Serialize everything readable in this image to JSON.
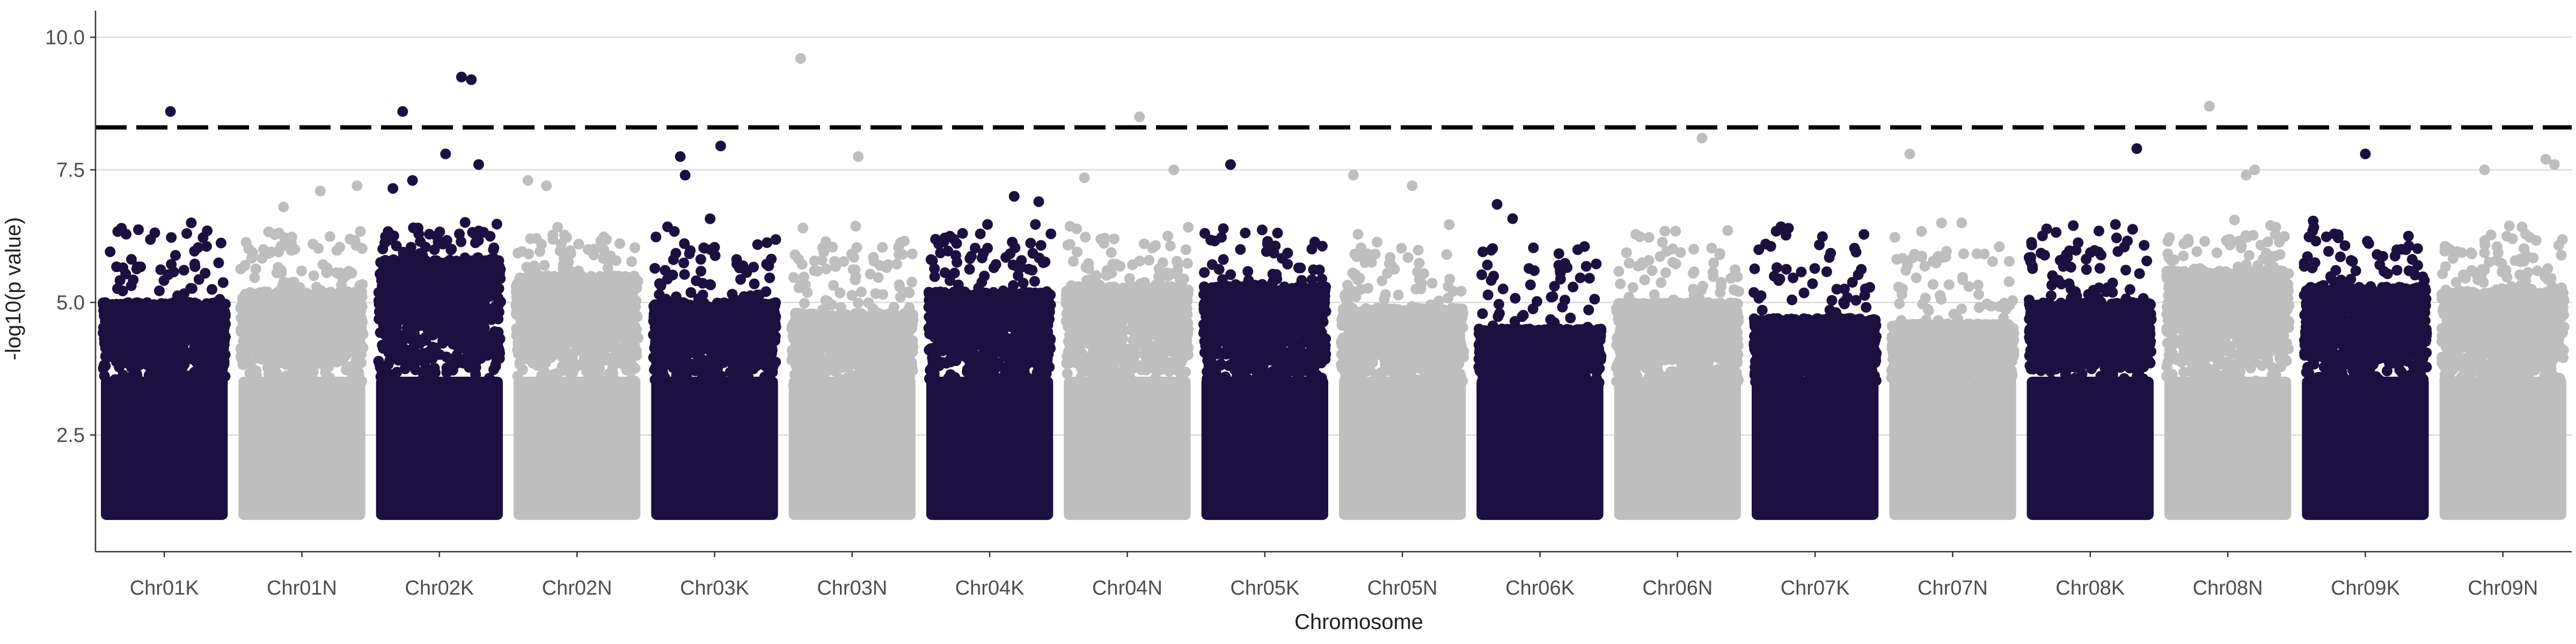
{
  "chart_data": {
    "type": "scatter",
    "title": "",
    "xlabel": "Chromosome",
    "ylabel": "-log10(p value)",
    "categories": [
      "Chr01K",
      "Chr01N",
      "Chr02K",
      "Chr02N",
      "Chr03K",
      "Chr03N",
      "Chr04K",
      "Chr04N",
      "Chr05K",
      "Chr05N",
      "Chr06K",
      "Chr06N",
      "Chr07K",
      "Chr07N",
      "Chr08K",
      "Chr08N",
      "Chr09K",
      "Chr09N"
    ],
    "ylim": [
      0.3,
      10.5
    ],
    "yticks": [
      {
        "value": 2.5,
        "label": "2.5"
      },
      {
        "value": 5.0,
        "label": "5.0"
      },
      {
        "value": 7.5,
        "label": "7.5"
      },
      {
        "value": 10.0,
        "label": "10.0"
      }
    ],
    "threshold": 8.3,
    "grid": true,
    "legend": "none",
    "colors": {
      "dark": "#1c1040",
      "light": "#bebebe",
      "grid": "#dcdcdc",
      "threshold": "#000000"
    },
    "series": [
      {
        "category": "Chr01K",
        "color": "dark",
        "max_peak": 8.6,
        "typical_top": 5.0
      },
      {
        "category": "Chr01N",
        "color": "light",
        "max_peak": 7.2,
        "typical_top": 5.2
      },
      {
        "category": "Chr02K",
        "color": "dark",
        "max_peak": 9.25,
        "typical_top": 5.8
      },
      {
        "category": "Chr02N",
        "color": "light",
        "max_peak": 7.3,
        "typical_top": 5.5
      },
      {
        "category": "Chr03K",
        "color": "dark",
        "max_peak": 7.9,
        "typical_top": 5.0
      },
      {
        "category": "Chr03N",
        "color": "light",
        "max_peak": 9.6,
        "typical_top": 4.8
      },
      {
        "category": "Chr04K",
        "color": "dark",
        "max_peak": 7.0,
        "typical_top": 5.2
      },
      {
        "category": "Chr04N",
        "color": "light",
        "max_peak": 8.5,
        "typical_top": 5.3
      },
      {
        "category": "Chr05K",
        "color": "dark",
        "max_peak": 7.6,
        "typical_top": 5.3
      },
      {
        "category": "Chr05N",
        "color": "light",
        "max_peak": 7.4,
        "typical_top": 4.9
      },
      {
        "category": "Chr06K",
        "color": "dark",
        "max_peak": 6.8,
        "typical_top": 4.5
      },
      {
        "category": "Chr06N",
        "color": "light",
        "max_peak": 8.1,
        "typical_top": 5.0
      },
      {
        "category": "Chr07K",
        "color": "dark",
        "max_peak": 6.3,
        "typical_top": 4.7
      },
      {
        "category": "Chr07N",
        "color": "light",
        "max_peak": 7.8,
        "typical_top": 4.6
      },
      {
        "category": "Chr08K",
        "color": "dark",
        "max_peak": 7.9,
        "typical_top": 5.0
      },
      {
        "category": "Chr08N",
        "color": "light",
        "max_peak": 8.7,
        "typical_top": 5.6
      },
      {
        "category": "Chr09K",
        "color": "dark",
        "max_peak": 7.8,
        "typical_top": 5.3
      },
      {
        "category": "Chr09N",
        "color": "light",
        "max_peak": 7.7,
        "typical_top": 5.2
      }
    ],
    "outliers": [
      {
        "category": "Chr01K",
        "pos": 0.55,
        "y": 8.6
      },
      {
        "category": "Chr01K",
        "pos": 0.15,
        "y": 6.4
      },
      {
        "category": "Chr01K",
        "pos": 0.72,
        "y": 6.5
      },
      {
        "category": "Chr01K",
        "pos": 0.85,
        "y": 6.35
      },
      {
        "category": "Chr01N",
        "pos": 0.65,
        "y": 7.1
      },
      {
        "category": "Chr01N",
        "pos": 0.95,
        "y": 7.2
      },
      {
        "category": "Chr01N",
        "pos": 0.35,
        "y": 6.8
      },
      {
        "category": "Chr02K",
        "pos": 0.2,
        "y": 8.6
      },
      {
        "category": "Chr02K",
        "pos": 0.68,
        "y": 9.25
      },
      {
        "category": "Chr02K",
        "pos": 0.76,
        "y": 9.2
      },
      {
        "category": "Chr02K",
        "pos": 0.55,
        "y": 7.8
      },
      {
        "category": "Chr02K",
        "pos": 0.82,
        "y": 7.6
      },
      {
        "category": "Chr02K",
        "pos": 0.12,
        "y": 7.15
      },
      {
        "category": "Chr02K",
        "pos": 0.28,
        "y": 7.3
      },
      {
        "category": "Chr02N",
        "pos": 0.1,
        "y": 7.3
      },
      {
        "category": "Chr02N",
        "pos": 0.25,
        "y": 7.2
      },
      {
        "category": "Chr03K",
        "pos": 0.22,
        "y": 7.75
      },
      {
        "category": "Chr03K",
        "pos": 0.55,
        "y": 7.95
      },
      {
        "category": "Chr03K",
        "pos": 0.26,
        "y": 7.4
      },
      {
        "category": "Chr03N",
        "pos": 0.08,
        "y": 9.6
      },
      {
        "category": "Chr03N",
        "pos": 0.55,
        "y": 7.75
      },
      {
        "category": "Chr04K",
        "pos": 0.7,
        "y": 7.0
      },
      {
        "category": "Chr04K",
        "pos": 0.9,
        "y": 6.9
      },
      {
        "category": "Chr04N",
        "pos": 0.6,
        "y": 8.5
      },
      {
        "category": "Chr04N",
        "pos": 0.15,
        "y": 7.35
      },
      {
        "category": "Chr04N",
        "pos": 0.88,
        "y": 7.5
      },
      {
        "category": "Chr05K",
        "pos": 0.22,
        "y": 7.6
      },
      {
        "category": "Chr05N",
        "pos": 0.1,
        "y": 7.4
      },
      {
        "category": "Chr05N",
        "pos": 0.58,
        "y": 7.2
      },
      {
        "category": "Chr06K",
        "pos": 0.15,
        "y": 6.85
      },
      {
        "category": "Chr06N",
        "pos": 0.7,
        "y": 8.1
      },
      {
        "category": "Chr07N",
        "pos": 0.15,
        "y": 7.8
      },
      {
        "category": "Chr08K",
        "pos": 0.88,
        "y": 7.9
      },
      {
        "category": "Chr08N",
        "pos": 0.35,
        "y": 8.7
      },
      {
        "category": "Chr08N",
        "pos": 0.65,
        "y": 7.4
      },
      {
        "category": "Chr08N",
        "pos": 0.72,
        "y": 7.5
      },
      {
        "category": "Chr09K",
        "pos": 0.5,
        "y": 7.8
      },
      {
        "category": "Chr09N",
        "pos": 0.35,
        "y": 7.5
      },
      {
        "category": "Chr09N",
        "pos": 0.85,
        "y": 7.7
      },
      {
        "category": "Chr09N",
        "pos": 0.92,
        "y": 7.6
      }
    ]
  }
}
